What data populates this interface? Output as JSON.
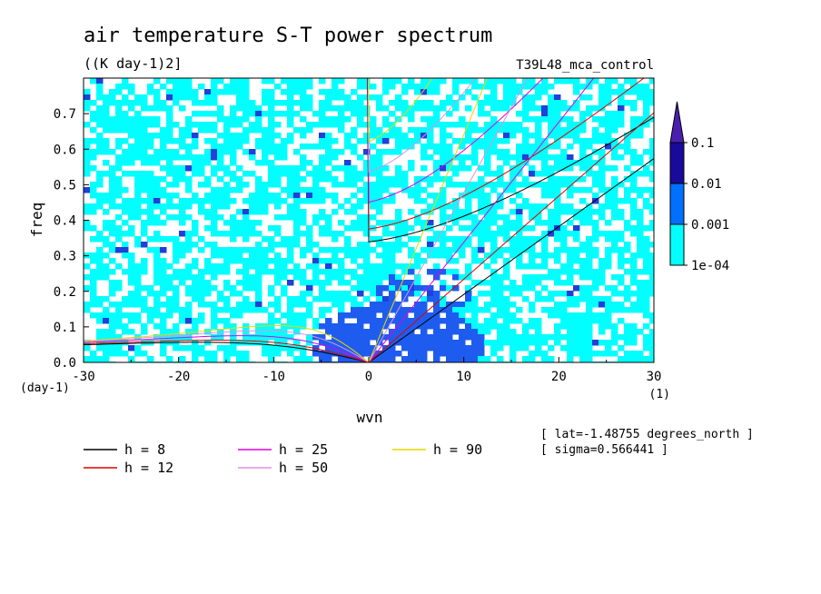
{
  "chart_data": {
    "type": "heatmap",
    "title": "air temperature S-T power spectrum",
    "subtitle": "((K day-1)2]",
    "run_label": "T39L48_mca_control",
    "xlabel": "wvn",
    "ylabel": "freq",
    "x_unit": "(1)",
    "y_unit": "(day-1)",
    "xlim": [
      -30,
      30
    ],
    "ylim": [
      0,
      0.8
    ],
    "x_ticks": [
      "-30",
      "-20",
      "-10",
      "0",
      "10",
      "20",
      "30"
    ],
    "y_ticks": [
      "0.0",
      "0.1",
      "0.2",
      "0.3",
      "0.4",
      "0.5",
      "0.6",
      "0.7"
    ],
    "colorbar": {
      "levels": [
        "1e-04",
        "0.001",
        "0.01",
        "0.1"
      ],
      "colors": [
        "#00ffff",
        "#0070ff",
        "#1e3cc8",
        "#1a0a9c",
        "#4a1fb0"
      ]
    },
    "field_colors": {
      "low": "#00ffff",
      "mid": "#1e5cf0",
      "high": "#2040d8"
    },
    "dispersion_curves": [
      {
        "label": "h =  8",
        "h": 8,
        "color": "#000000"
      },
      {
        "label": "h = 12",
        "h": 12,
        "color": "#e00000"
      },
      {
        "label": "h = 25",
        "h": 25,
        "color": "#e000e0"
      },
      {
        "label": "h = 50",
        "h": 50,
        "color": "#e090e0"
      },
      {
        "label": "h = 90",
        "h": 90,
        "color": "#e8d800"
      }
    ],
    "info_lines": [
      "[ lat=-1.48755 degrees_north ]",
      "[ sigma=0.566441 ]"
    ]
  }
}
